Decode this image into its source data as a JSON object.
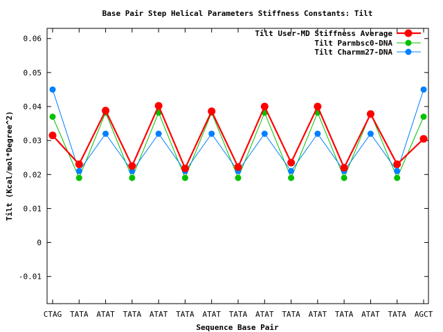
{
  "chart_data": {
    "type": "line",
    "title": "Base Pair Step Helical Parameters Stiffness Constants: Tilt",
    "xlabel": "Sequence Base Pair",
    "ylabel": "Tilt (Kcal/mol*Degree^2)",
    "categories": [
      "CTAG",
      "TATA",
      "ATAT",
      "TATA",
      "ATAT",
      "TATA",
      "ATAT",
      "TATA",
      "ATAT",
      "TATA",
      "ATAT",
      "TATA",
      "ATAT",
      "TATA",
      "AGCT"
    ],
    "ylim": [
      -0.018,
      0.063
    ],
    "yticks": [
      -0.01,
      0,
      0.01,
      0.02,
      0.03,
      0.04,
      0.05,
      0.06
    ],
    "ytick_labels": [
      "-0.01",
      "0",
      "0.01",
      "0.02",
      "0.03",
      "0.04",
      "0.05",
      "0.06"
    ],
    "grid": false,
    "legend_position": "top-right",
    "series": [
      {
        "name": "Tilt User-MD Stiffness Average",
        "color": "#ff0000",
        "values": [
          0.0315,
          0.023,
          0.0388,
          0.0225,
          0.0402,
          0.0218,
          0.0386,
          0.0222,
          0.04,
          0.0235,
          0.04,
          0.022,
          0.0378,
          0.023,
          0.0305
        ]
      },
      {
        "name": "Tilt Parmbsc0-DNA",
        "color": "#00c000",
        "values": [
          0.037,
          0.019,
          0.0382,
          0.019,
          0.0382,
          0.019,
          0.0382,
          0.019,
          0.0382,
          0.019,
          0.0382,
          0.019,
          0.038,
          0.019,
          0.037
        ]
      },
      {
        "name": "Tilt Charmm27-DNA",
        "color": "#0080ff",
        "values": [
          0.045,
          0.021,
          0.032,
          0.021,
          0.032,
          0.021,
          0.032,
          0.021,
          0.032,
          0.021,
          0.032,
          0.021,
          0.032,
          0.021,
          0.045
        ]
      }
    ]
  }
}
